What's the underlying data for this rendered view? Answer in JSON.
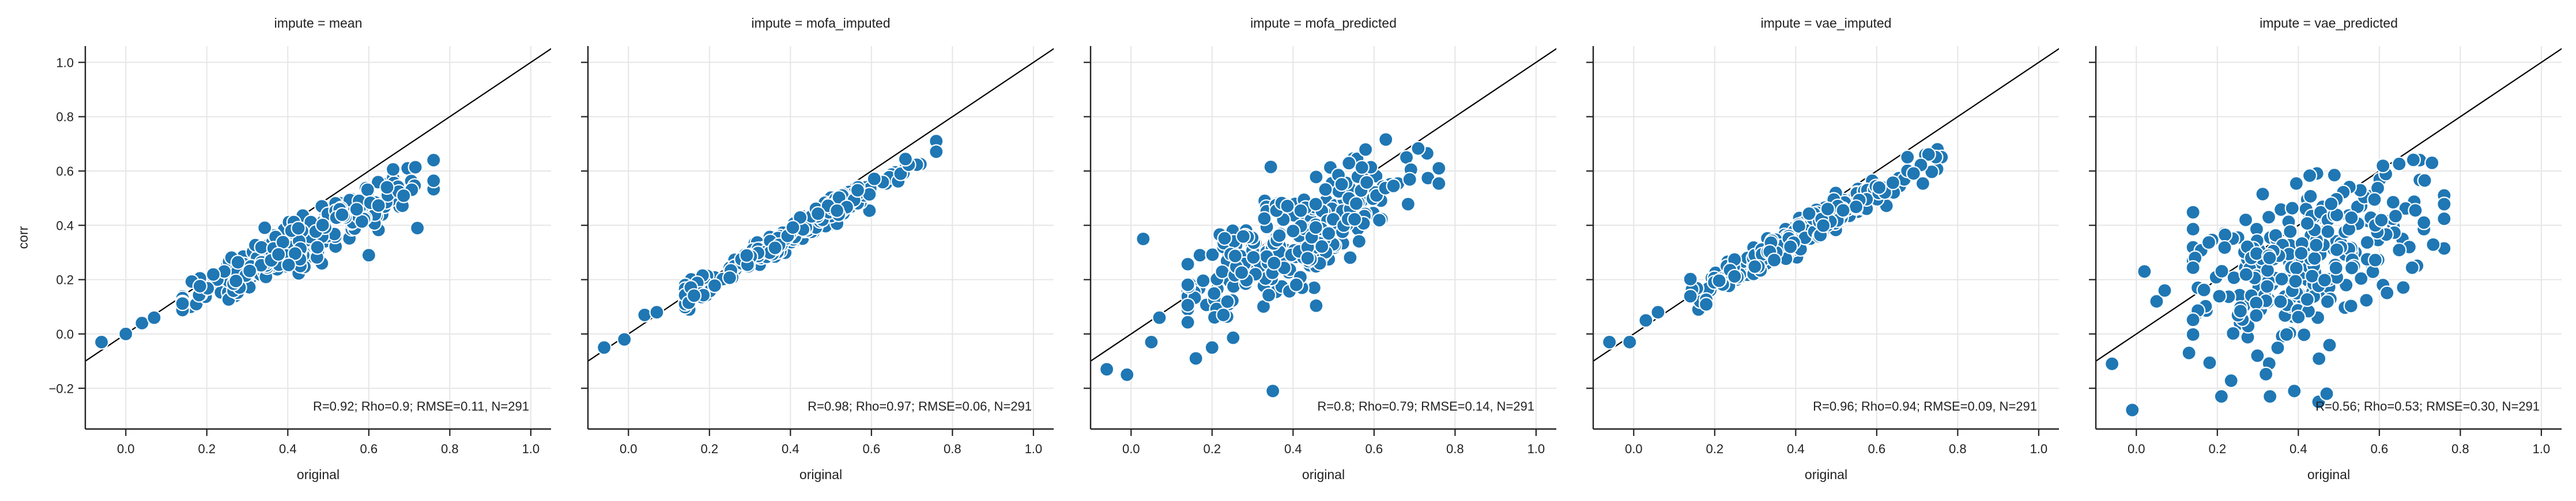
{
  "figure": {
    "ylabel": "corr",
    "xlabel": "original"
  },
  "style": {
    "point_color": "#1f77b4",
    "point_edge": "#ffffff",
    "identity_line_color": "#000000",
    "grid_color": "#e6e6e6"
  },
  "chart_data": [
    {
      "type": "scatter",
      "title": "impute = mean",
      "xlabel": "original",
      "ylabel": "corr",
      "xlim": [
        -0.1,
        1.05
      ],
      "ylim": [
        -0.35,
        1.06
      ],
      "xticks": [
        "0.0",
        "0.2",
        "0.4",
        "0.6",
        "0.8",
        "1.0"
      ],
      "yticks": [
        "−0.2",
        "0.0",
        "0.2",
        "0.4",
        "0.6",
        "0.8",
        "1.0"
      ],
      "grid": true,
      "identity_line": true,
      "annotation": "R=0.92; Rho=0.9; RMSE=0.11, N=291",
      "fit": {
        "slope": 0.78,
        "intercept": 0.005,
        "noise": 0.04
      },
      "outliers": [
        [
          -0.06,
          -0.03
        ],
        [
          0.0,
          0.0
        ],
        [
          0.04,
          0.04
        ],
        [
          0.07,
          0.06
        ],
        [
          0.6,
          0.29
        ],
        [
          0.72,
          0.39
        ],
        [
          0.76,
          0.64
        ],
        [
          0.16,
          0.1
        ],
        [
          0.27,
          0.14
        ]
      ]
    },
    {
      "type": "scatter",
      "title": "impute = mofa_imputed",
      "xlabel": "original",
      "ylabel": "",
      "xlim": [
        -0.1,
        1.05
      ],
      "ylim": [
        -0.35,
        1.06
      ],
      "xticks": [
        "0.0",
        "0.2",
        "0.4",
        "0.6",
        "0.8",
        "1.0"
      ],
      "yticks": [],
      "grid": true,
      "identity_line": true,
      "annotation": "R=0.98; Rho=0.97; RMSE=0.06, N=291",
      "fit": {
        "slope": 0.86,
        "intercept": 0.02,
        "noise": 0.022
      },
      "outliers": [
        [
          -0.06,
          -0.05
        ],
        [
          -0.01,
          -0.02
        ],
        [
          0.04,
          0.07
        ],
        [
          0.07,
          0.08
        ],
        [
          0.76,
          0.68
        ],
        [
          0.15,
          0.09
        ]
      ]
    },
    {
      "type": "scatter",
      "title": "impute = mofa_predicted",
      "xlabel": "original",
      "ylabel": "",
      "xlim": [
        -0.1,
        1.05
      ],
      "ylim": [
        -0.35,
        1.06
      ],
      "xticks": [
        "0.0",
        "0.2",
        "0.4",
        "0.6",
        "0.8",
        "1.0"
      ],
      "yticks": [],
      "grid": true,
      "identity_line": true,
      "annotation": "R=0.8; Rho=0.79; RMSE=0.14, N=291",
      "fit": {
        "slope": 0.82,
        "intercept": 0.02,
        "noise": 0.09
      },
      "outliers": [
        [
          -0.06,
          -0.13
        ],
        [
          -0.01,
          -0.15
        ],
        [
          0.03,
          0.35
        ],
        [
          0.05,
          -0.03
        ],
        [
          0.07,
          0.06
        ],
        [
          0.16,
          -0.09
        ],
        [
          0.2,
          -0.05
        ],
        [
          0.35,
          -0.21
        ],
        [
          0.17,
          0.29
        ],
        [
          0.33,
          0.49
        ],
        [
          0.36,
          0.48
        ],
        [
          0.68,
          0.65
        ],
        [
          0.76,
          0.61
        ]
      ]
    },
    {
      "type": "scatter",
      "title": "impute = vae_imputed",
      "xlabel": "original",
      "ylabel": "",
      "xlim": [
        -0.1,
        1.05
      ],
      "ylim": [
        -0.35,
        1.06
      ],
      "xticks": [
        "0.0",
        "0.2",
        "0.4",
        "0.6",
        "0.8",
        "1.0"
      ],
      "yticks": [],
      "grid": true,
      "identity_line": true,
      "annotation": "R=0.96; Rho=0.94; RMSE=0.09, N=291",
      "fit": {
        "slope": 0.84,
        "intercept": 0.02,
        "noise": 0.03
      },
      "outliers": [
        [
          -0.06,
          -0.03
        ],
        [
          -0.01,
          -0.03
        ],
        [
          0.03,
          0.05
        ],
        [
          0.06,
          0.08
        ],
        [
          0.75,
          0.68
        ],
        [
          0.72,
          0.66
        ],
        [
          0.16,
          0.09
        ]
      ]
    },
    {
      "type": "scatter",
      "title": "impute = vae_predicted",
      "xlabel": "original",
      "ylabel": "",
      "xlim": [
        -0.1,
        1.05
      ],
      "ylim": [
        -0.35,
        1.06
      ],
      "xticks": [
        "0.0",
        "0.2",
        "0.4",
        "0.6",
        "0.8",
        "1.0"
      ],
      "yticks": [],
      "grid": true,
      "identity_line": true,
      "annotation": "R=0.56; Rho=0.53; RMSE=0.30, N=291",
      "fit": {
        "slope": 0.58,
        "intercept": 0.04,
        "noise": 0.14
      },
      "outliers": [
        [
          -0.06,
          -0.11
        ],
        [
          -0.01,
          -0.28
        ],
        [
          0.02,
          0.23
        ],
        [
          0.05,
          0.12
        ],
        [
          0.07,
          0.16
        ],
        [
          0.13,
          -0.07
        ],
        [
          0.21,
          -0.23
        ],
        [
          0.33,
          -0.23
        ],
        [
          0.39,
          -0.21
        ],
        [
          0.45,
          -0.25
        ],
        [
          0.47,
          -0.22
        ],
        [
          0.7,
          0.64
        ],
        [
          0.73,
          0.63
        ],
        [
          0.76,
          0.51
        ]
      ]
    }
  ]
}
